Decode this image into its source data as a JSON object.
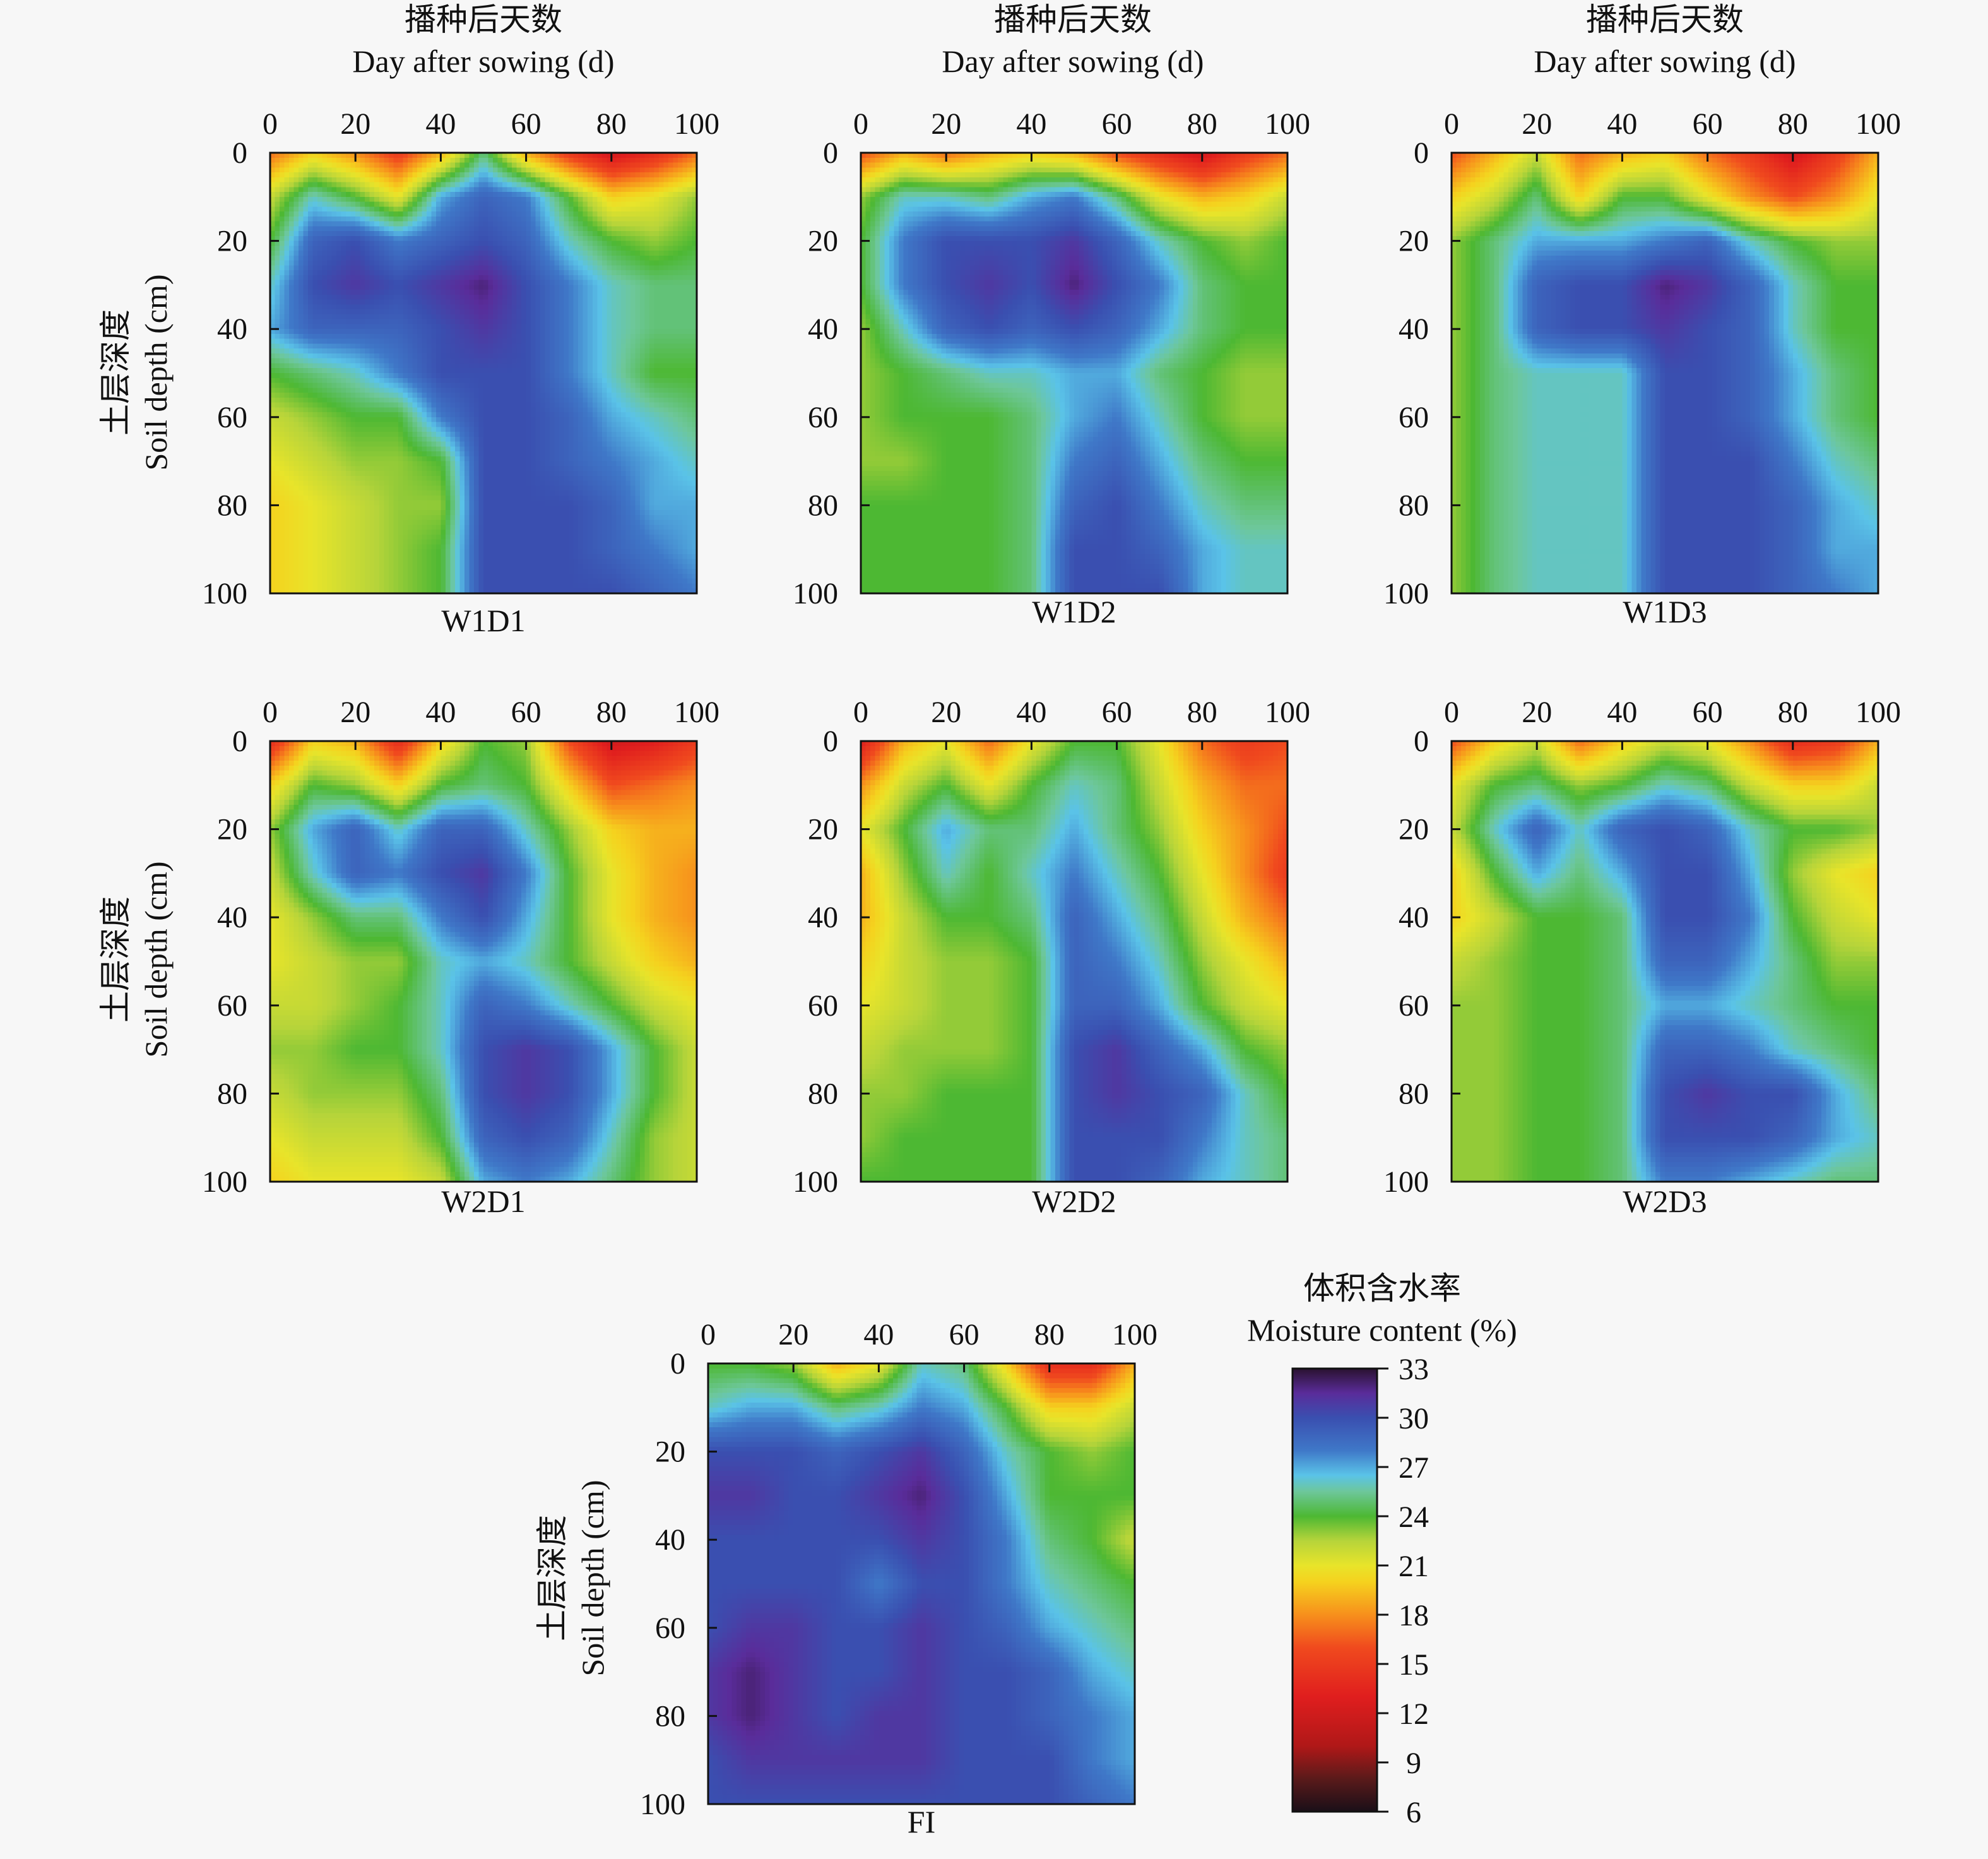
{
  "figure": {
    "x_title_cn": "播种后天数",
    "x_title_en": "Day after sowing  (d)",
    "y_title_cn": "土层深度",
    "y_title_en": "Soil depth (cm)",
    "x_ticks": [
      "0",
      "20",
      "40",
      "60",
      "80",
      "100"
    ],
    "y_ticks": [
      "0",
      "20",
      "40",
      "60",
      "80",
      "100"
    ]
  },
  "colorbar": {
    "title_cn": "体积含水率",
    "title_en": "Moisture content (%)",
    "ticks": [
      "33",
      "30",
      "27",
      "24",
      "21",
      "18",
      "15",
      "12",
      "9",
      "6"
    ],
    "range": [
      6,
      33
    ],
    "stops": [
      {
        "v": 6,
        "color": "#1a0f18"
      },
      {
        "v": 8,
        "color": "#5a1a1a"
      },
      {
        "v": 10,
        "color": "#b01818"
      },
      {
        "v": 13,
        "color": "#e01e1e"
      },
      {
        "v": 16,
        "color": "#f04a1e"
      },
      {
        "v": 18,
        "color": "#f7901c"
      },
      {
        "v": 20,
        "color": "#f5d21e"
      },
      {
        "v": 21,
        "color": "#e8e42a"
      },
      {
        "v": 22.5,
        "color": "#b6d43a"
      },
      {
        "v": 24,
        "color": "#4db833"
      },
      {
        "v": 25.5,
        "color": "#6dc79a"
      },
      {
        "v": 26.5,
        "color": "#5ac3e8"
      },
      {
        "v": 28,
        "color": "#3f78c8"
      },
      {
        "v": 30,
        "color": "#3a4fb0"
      },
      {
        "v": 31.5,
        "color": "#5a2c9a"
      },
      {
        "v": 33,
        "color": "#2a1230"
      }
    ]
  },
  "chart_data": [
    {
      "type": "heatmap",
      "label": "W1D1",
      "xlim": [
        0,
        100
      ],
      "ylim": [
        0,
        100
      ],
      "x": [
        0,
        10,
        20,
        30,
        40,
        50,
        60,
        70,
        80,
        90,
        100
      ],
      "y": [
        0,
        10,
        20,
        30,
        40,
        50,
        60,
        70,
        80,
        90,
        100
      ],
      "z": [
        [
          17,
          20,
          18,
          15,
          19,
          25,
          19,
          15,
          12,
          14,
          17
        ],
        [
          22,
          26,
          24,
          21,
          27,
          29,
          28,
          24,
          20,
          21,
          23
        ],
        [
          24,
          29,
          30,
          28,
          29,
          30,
          29,
          26,
          24,
          23,
          24
        ],
        [
          26,
          30,
          31,
          30,
          31,
          32,
          30,
          28,
          26,
          25,
          25
        ],
        [
          27,
          29,
          29,
          29,
          30,
          31,
          30,
          28,
          26,
          25,
          25
        ],
        [
          24,
          25,
          26,
          28,
          30,
          30,
          30,
          28,
          26,
          24,
          24
        ],
        [
          22,
          23,
          24,
          24,
          28,
          30,
          30,
          29,
          27,
          26,
          25
        ],
        [
          21,
          22,
          23,
          23,
          24,
          30,
          30,
          29,
          28,
          27,
          26
        ],
        [
          20,
          21,
          22,
          23,
          23,
          30,
          30,
          30,
          29,
          27,
          27
        ],
        [
          20,
          21,
          22,
          23,
          24,
          30,
          30,
          30,
          29,
          28,
          27
        ],
        [
          20,
          21,
          22,
          23,
          24,
          30,
          30,
          30,
          30,
          29,
          28
        ]
      ]
    },
    {
      "type": "heatmap",
      "label": "W1D2",
      "xlim": [
        0,
        100
      ],
      "ylim": [
        0,
        100
      ],
      "x": [
        0,
        10,
        20,
        30,
        40,
        50,
        60,
        70,
        80,
        90,
        100
      ],
      "y": [
        0,
        10,
        20,
        30,
        40,
        50,
        60,
        70,
        80,
        90,
        100
      ],
      "z": [
        [
          16,
          19,
          17,
          19,
          20,
          19,
          16,
          14,
          12,
          15,
          17
        ],
        [
          23,
          26,
          26,
          25,
          27,
          28,
          25,
          21,
          19,
          20,
          22
        ],
        [
          24,
          28,
          30,
          30,
          30,
          31,
          29,
          26,
          24,
          23,
          24
        ],
        [
          24,
          28,
          30,
          31,
          30,
          32,
          30,
          28,
          25,
          24,
          24
        ],
        [
          23,
          26,
          29,
          30,
          29,
          30,
          29,
          27,
          25,
          24,
          24
        ],
        [
          23,
          24,
          25,
          26,
          26,
          27,
          27,
          25,
          24,
          23,
          23
        ],
        [
          23,
          24,
          24,
          24,
          25,
          27,
          28,
          26,
          24,
          23,
          23
        ],
        [
          23,
          23,
          24,
          24,
          25,
          28,
          29,
          27,
          25,
          24,
          24
        ],
        [
          24,
          24,
          24,
          24,
          25,
          29,
          30,
          28,
          26,
          25,
          25
        ],
        [
          24,
          24,
          24,
          24,
          25,
          30,
          30,
          29,
          27,
          26,
          26
        ],
        [
          24,
          24,
          24,
          24,
          25,
          30,
          30,
          30,
          27,
          26,
          26
        ]
      ]
    },
    {
      "type": "heatmap",
      "label": "W1D3",
      "xlim": [
        0,
        100
      ],
      "ylim": [
        0,
        100
      ],
      "x": [
        0,
        10,
        20,
        30,
        40,
        50,
        60,
        70,
        80,
        90,
        100
      ],
      "y": [
        0,
        10,
        20,
        30,
        40,
        50,
        60,
        70,
        80,
        90,
        100
      ],
      "z": [
        [
          16,
          19,
          22,
          17,
          19,
          20,
          17,
          15,
          12,
          15,
          19
        ],
        [
          20,
          22,
          25,
          20,
          24,
          24,
          21,
          18,
          16,
          18,
          21
        ],
        [
          23,
          25,
          27,
          27,
          27,
          28,
          29,
          26,
          24,
          23,
          23
        ],
        [
          23,
          25,
          29,
          30,
          30,
          32,
          31,
          29,
          26,
          24,
          24
        ],
        [
          23,
          25,
          29,
          30,
          30,
          31,
          30,
          29,
          26,
          24,
          24
        ],
        [
          23,
          25,
          26,
          26,
          26,
          30,
          30,
          29,
          27,
          25,
          24
        ],
        [
          23,
          25,
          26,
          26,
          26,
          30,
          30,
          29,
          27,
          25,
          24
        ],
        [
          23,
          25,
          26,
          26,
          26,
          30,
          30,
          30,
          28,
          26,
          25
        ],
        [
          23,
          25,
          26,
          26,
          26,
          30,
          30,
          30,
          29,
          27,
          26
        ],
        [
          23,
          25,
          26,
          26,
          26,
          30,
          30,
          30,
          29,
          27,
          27
        ],
        [
          23,
          25,
          26,
          26,
          26,
          30,
          30,
          30,
          29,
          28,
          27
        ]
      ]
    },
    {
      "type": "heatmap",
      "label": "W2D1",
      "xlim": [
        0,
        100
      ],
      "ylim": [
        0,
        100
      ],
      "x": [
        0,
        10,
        20,
        30,
        40,
        50,
        60,
        70,
        80,
        90,
        100
      ],
      "y": [
        0,
        10,
        20,
        30,
        40,
        50,
        60,
        70,
        80,
        90,
        100
      ],
      "z": [
        [
          14,
          20,
          19,
          14,
          20,
          24,
          23,
          16,
          12,
          13,
          15
        ],
        [
          20,
          24,
          23,
          20,
          24,
          25,
          24,
          20,
          16,
          17,
          18
        ],
        [
          23,
          27,
          29,
          26,
          29,
          29,
          26,
          23,
          20,
          19,
          19
        ],
        [
          22,
          26,
          29,
          28,
          30,
          31,
          28,
          24,
          21,
          19,
          18
        ],
        [
          21,
          23,
          25,
          25,
          28,
          30,
          27,
          24,
          21,
          19,
          18
        ],
        [
          21,
          22,
          23,
          23,
          26,
          27,
          26,
          24,
          22,
          20,
          19
        ],
        [
          22,
          22,
          23,
          24,
          26,
          29,
          28,
          26,
          24,
          22,
          21
        ],
        [
          23,
          23,
          24,
          24,
          26,
          30,
          31,
          30,
          27,
          24,
          22
        ],
        [
          22,
          23,
          23,
          23,
          25,
          30,
          31,
          30,
          27,
          24,
          22
        ],
        [
          21,
          22,
          22,
          22,
          24,
          29,
          30,
          29,
          26,
          23,
          22
        ],
        [
          20,
          21,
          21,
          21,
          22,
          27,
          28,
          27,
          25,
          23,
          22
        ]
      ]
    },
    {
      "type": "heatmap",
      "label": "W2D2",
      "xlim": [
        0,
        100
      ],
      "ylim": [
        0,
        100
      ],
      "x": [
        0,
        10,
        20,
        30,
        40,
        50,
        60,
        70,
        80,
        90,
        100
      ],
      "y": [
        0,
        10,
        20,
        30,
        40,
        50,
        60,
        70,
        80,
        90,
        100
      ],
      "z": [
        [
          13,
          19,
          21,
          17,
          21,
          24,
          24,
          21,
          17,
          15,
          16
        ],
        [
          18,
          22,
          24,
          21,
          24,
          26,
          25,
          22,
          19,
          17,
          17
        ],
        [
          21,
          24,
          27,
          25,
          25,
          27,
          25,
          23,
          20,
          18,
          16
        ],
        [
          19,
          23,
          26,
          24,
          26,
          28,
          26,
          24,
          21,
          18,
          15
        ],
        [
          19,
          22,
          24,
          24,
          25,
          29,
          27,
          25,
          22,
          19,
          17
        ],
        [
          20,
          22,
          23,
          23,
          24,
          29,
          28,
          26,
          23,
          21,
          19
        ],
        [
          21,
          22,
          23,
          23,
          24,
          29,
          29,
          27,
          24,
          22,
          21
        ],
        [
          22,
          23,
          23,
          23,
          24,
          30,
          31,
          29,
          27,
          24,
          23
        ],
        [
          23,
          23,
          24,
          24,
          24,
          30,
          31,
          30,
          29,
          26,
          24
        ],
        [
          23,
          24,
          24,
          24,
          24,
          30,
          30,
          30,
          28,
          26,
          25
        ],
        [
          24,
          24,
          24,
          24,
          24,
          30,
          30,
          29,
          27,
          26,
          25
        ]
      ]
    },
    {
      "type": "heatmap",
      "label": "W2D3",
      "xlim": [
        0,
        100
      ],
      "ylim": [
        0,
        100
      ],
      "x": [
        0,
        10,
        20,
        30,
        40,
        50,
        60,
        70,
        80,
        90,
        100
      ],
      "y": [
        0,
        10,
        20,
        30,
        40,
        50,
        60,
        70,
        80,
        90,
        100
      ],
      "z": [
        [
          16,
          20,
          22,
          17,
          20,
          22,
          21,
          18,
          14,
          15,
          19
        ],
        [
          21,
          24,
          25,
          23,
          24,
          26,
          25,
          22,
          20,
          20,
          22
        ],
        [
          22,
          26,
          29,
          26,
          29,
          30,
          29,
          26,
          24,
          24,
          23
        ],
        [
          20,
          24,
          27,
          25,
          27,
          30,
          30,
          27,
          23,
          21,
          20
        ],
        [
          20,
          22,
          24,
          24,
          25,
          30,
          30,
          28,
          24,
          22,
          21
        ],
        [
          22,
          23,
          24,
          24,
          25,
          29,
          29,
          27,
          25,
          23,
          23
        ],
        [
          23,
          23,
          24,
          24,
          25,
          27,
          27,
          26,
          25,
          24,
          24
        ],
        [
          23,
          23,
          24,
          24,
          25,
          29,
          29,
          28,
          26,
          25,
          24
        ],
        [
          23,
          23,
          24,
          24,
          25,
          30,
          31,
          30,
          30,
          27,
          25
        ],
        [
          23,
          23,
          24,
          24,
          25,
          30,
          30,
          30,
          29,
          27,
          26
        ],
        [
          23,
          23,
          24,
          24,
          25,
          28,
          28,
          27,
          26,
          25,
          25
        ]
      ]
    },
    {
      "type": "heatmap",
      "label": "FI",
      "xlim": [
        0,
        100
      ],
      "ylim": [
        0,
        100
      ],
      "x": [
        0,
        10,
        20,
        30,
        40,
        50,
        60,
        70,
        80,
        90,
        100
      ],
      "y": [
        0,
        10,
        20,
        30,
        40,
        50,
        60,
        70,
        80,
        90,
        100
      ],
      "z": [
        [
          24,
          24,
          23,
          19,
          21,
          26,
          25,
          20,
          14,
          14,
          19
        ],
        [
          26,
          27,
          27,
          25,
          26,
          28,
          27,
          24,
          20,
          20,
          22
        ],
        [
          30,
          30,
          30,
          29,
          30,
          31,
          29,
          26,
          24,
          23,
          24
        ],
        [
          31,
          31,
          30,
          30,
          31,
          32,
          30,
          27,
          24,
          24,
          24
        ],
        [
          30,
          30,
          30,
          30,
          30,
          31,
          30,
          28,
          25,
          24,
          22
        ],
        [
          30,
          30,
          30,
          30,
          28,
          30,
          30,
          28,
          26,
          25,
          24
        ],
        [
          30,
          31,
          31,
          30,
          30,
          31,
          30,
          29,
          27,
          26,
          25
        ],
        [
          31,
          32,
          31,
          30,
          30,
          31,
          30,
          30,
          29,
          27,
          26
        ],
        [
          31,
          32,
          31,
          30,
          31,
          31,
          30,
          30,
          29,
          28,
          27
        ],
        [
          30,
          31,
          31,
          31,
          31,
          31,
          30,
          30,
          30,
          28,
          27
        ],
        [
          30,
          30,
          30,
          30,
          30,
          30,
          30,
          30,
          30,
          29,
          28
        ]
      ]
    }
  ]
}
